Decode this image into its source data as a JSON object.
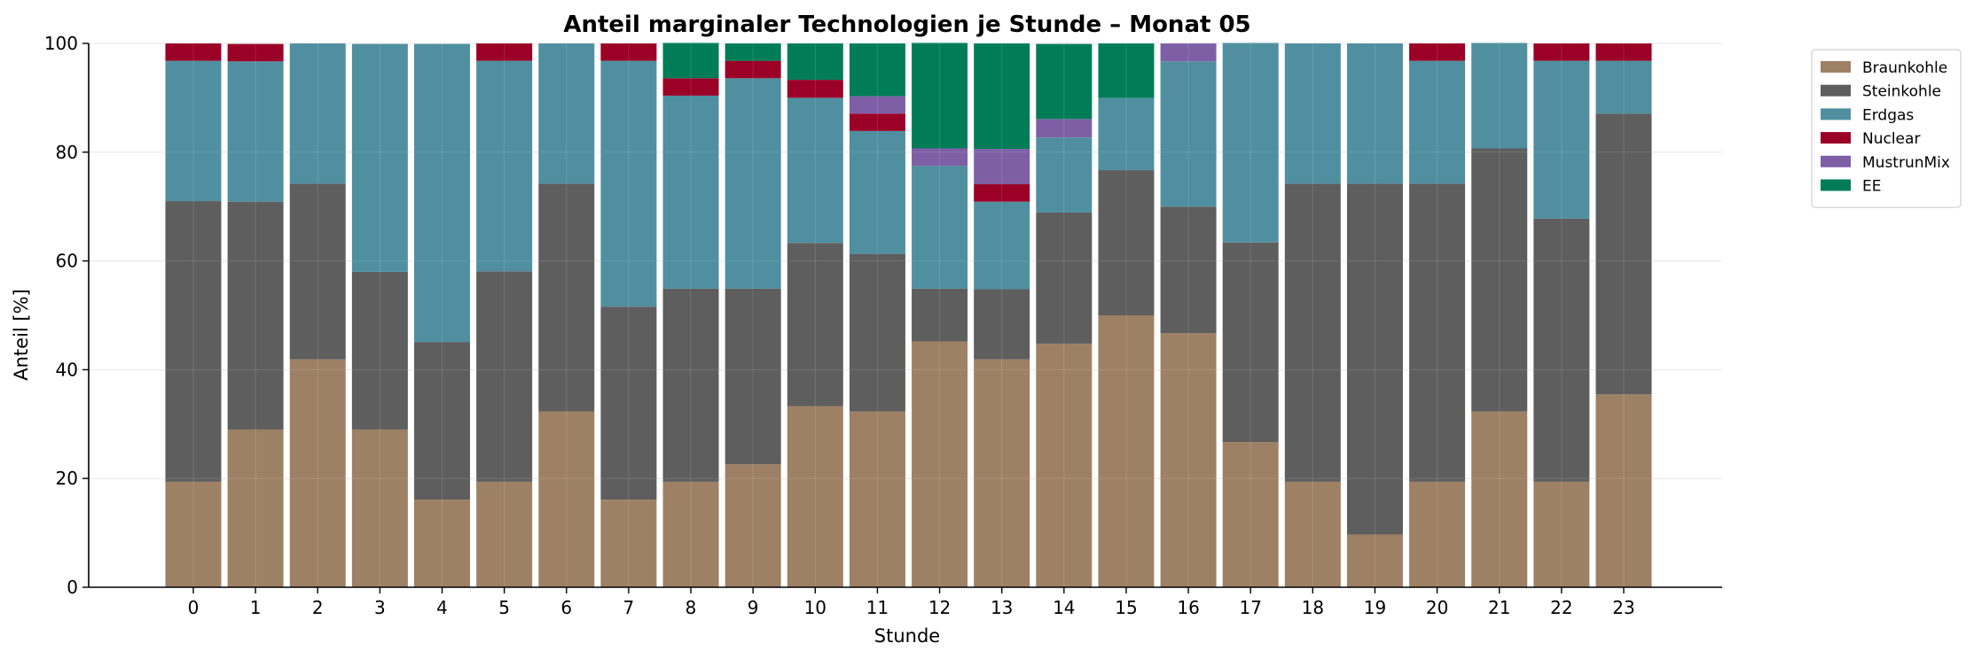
{
  "chart_data": {
    "type": "bar",
    "stacked": true,
    "title": "Anteil marginaler Technologien je Stunde – Monat 05",
    "xlabel": "Stunde",
    "ylabel": "Anteil [%]",
    "ylim": [
      0,
      100
    ],
    "yticks": [
      0,
      20,
      40,
      60,
      80,
      100
    ],
    "grid": "horizontal",
    "legend_position": "outside-top-right",
    "categories": [
      "0",
      "1",
      "2",
      "3",
      "4",
      "5",
      "6",
      "7",
      "8",
      "9",
      "10",
      "11",
      "12",
      "13",
      "14",
      "15",
      "16",
      "17",
      "18",
      "19",
      "20",
      "21",
      "22",
      "23"
    ],
    "series": [
      {
        "name": "Braunkohle",
        "color": "#9E8065",
        "values": [
          19.4,
          29.0,
          41.9,
          29.0,
          16.1,
          19.4,
          32.3,
          16.1,
          19.4,
          22.6,
          33.3,
          32.3,
          45.2,
          41.9,
          44.8,
          50.0,
          46.7,
          26.7,
          19.4,
          9.7,
          19.4,
          32.3,
          19.4,
          35.5
        ]
      },
      {
        "name": "Steinkohle",
        "color": "#5E5E5E",
        "values": [
          51.6,
          41.9,
          32.3,
          29.0,
          29.0,
          38.7,
          41.9,
          35.5,
          35.5,
          32.3,
          30.0,
          29.0,
          9.7,
          12.9,
          24.1,
          26.7,
          23.3,
          36.7,
          54.8,
          64.5,
          54.8,
          48.4,
          48.4,
          51.6
        ]
      },
      {
        "name": "Erdgas",
        "color": "#4F8FA0",
        "values": [
          25.8,
          25.8,
          25.8,
          41.9,
          54.8,
          38.7,
          25.8,
          45.2,
          35.5,
          38.7,
          26.7,
          22.6,
          22.6,
          16.1,
          13.8,
          13.3,
          26.7,
          36.7,
          25.8,
          25.8,
          22.6,
          19.4,
          29.0,
          9.7
        ]
      },
      {
        "name": "Nuclear",
        "color": "#9B0027",
        "values": [
          3.2,
          3.2,
          0,
          0,
          0,
          3.2,
          0,
          3.2,
          3.2,
          3.2,
          3.3,
          3.2,
          0,
          3.2,
          0,
          0,
          0,
          0,
          0,
          0,
          3.2,
          0,
          3.2,
          3.2
        ]
      },
      {
        "name": "MustrunMix",
        "color": "#7E5FA6",
        "values": [
          0,
          0,
          0,
          0,
          0,
          0,
          0,
          0,
          0,
          0,
          0,
          3.2,
          3.2,
          6.5,
          3.4,
          0,
          3.3,
          0,
          0,
          0,
          0,
          0,
          0,
          0
        ]
      },
      {
        "name": "EE",
        "color": "#007D57",
        "values": [
          0,
          0,
          0,
          0,
          0,
          0,
          0,
          0,
          6.5,
          3.2,
          6.7,
          9.7,
          19.4,
          19.4,
          13.8,
          10.0,
          0,
          0,
          0,
          0,
          0,
          0,
          0,
          0
        ]
      }
    ]
  }
}
